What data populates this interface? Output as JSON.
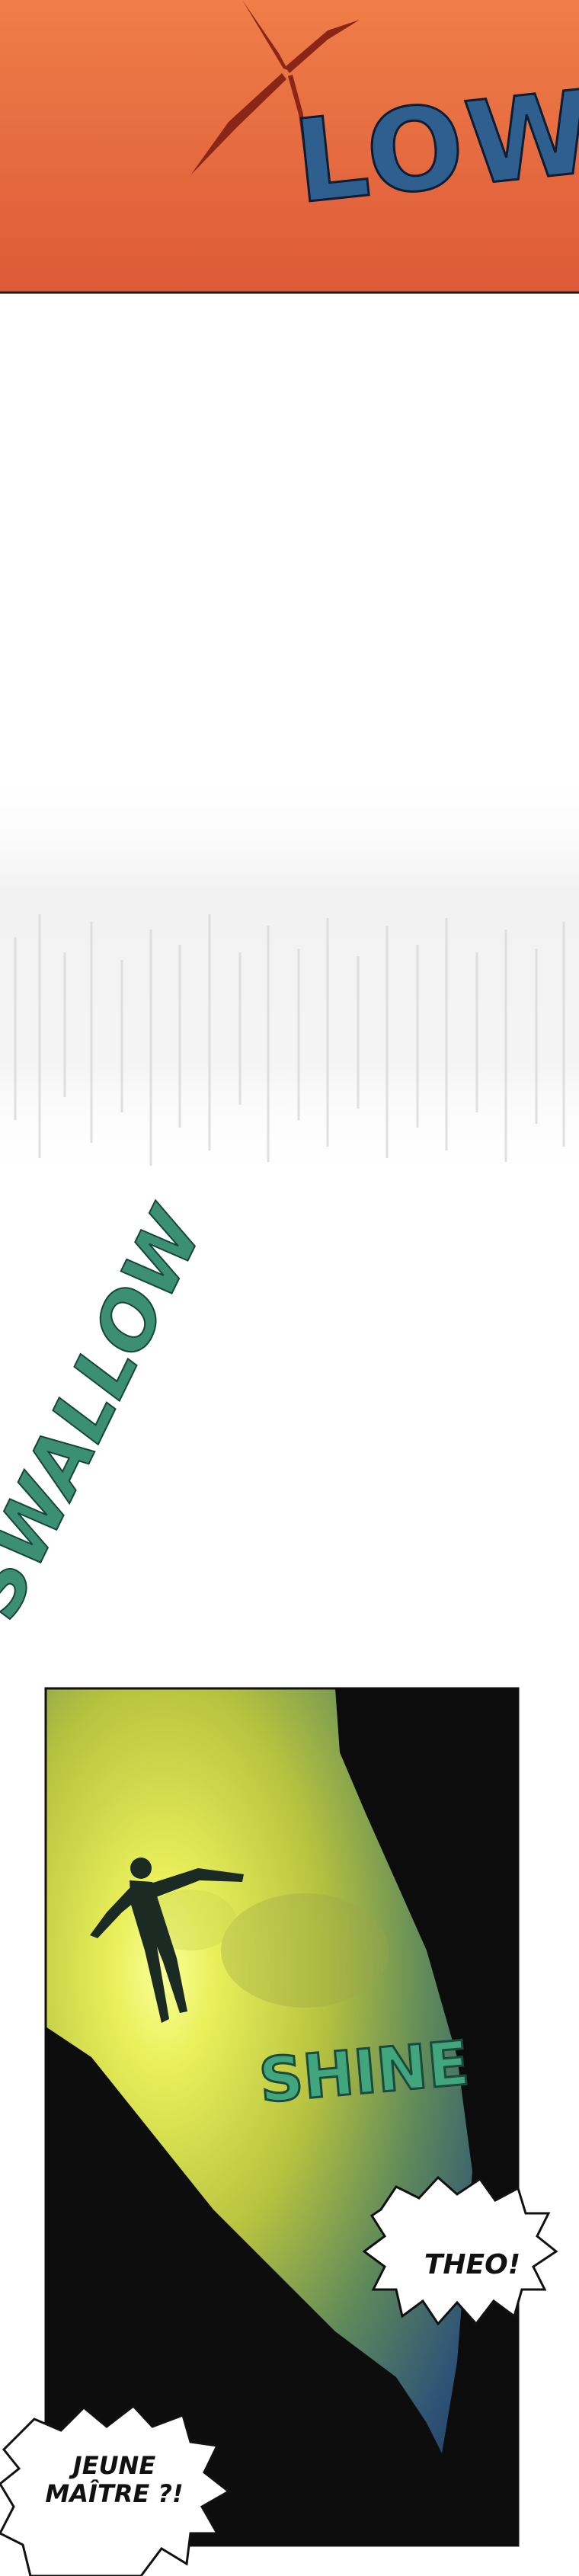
{
  "sound_effects": {
    "low": "LOW",
    "swallow": "SWALLOW",
    "shine": "SHINE"
  },
  "speech_bubbles": {
    "theo": "THEO!",
    "young_master": "JEUNE MAÎTRE ?!"
  },
  "colors": {
    "top_panel_orange": "#e86a3e",
    "sfx_low": "#2f5f8e",
    "sfx_green": "#3b8f73",
    "glow_yellow": "#e8f35a",
    "deep_blue": "#2c4f79"
  }
}
